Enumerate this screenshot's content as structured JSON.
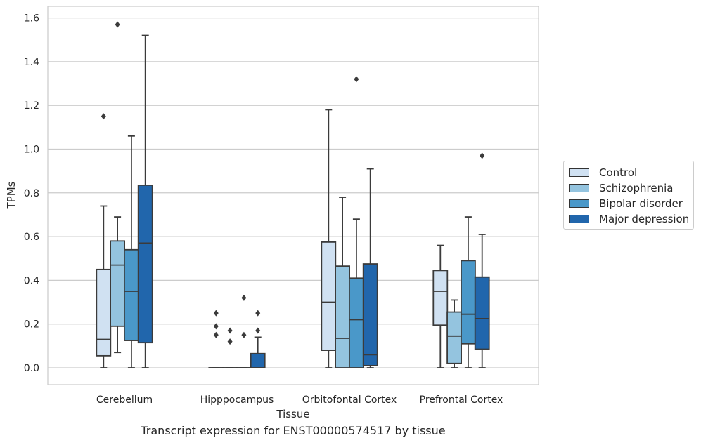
{
  "caption": "Transcript expression for ENST00000574517 by tissue",
  "chart_data": {
    "type": "box",
    "xlabel": "Tissue",
    "ylabel": "TPMs",
    "ylim": [
      -0.08,
      1.65
    ],
    "yticks": [
      "0.0",
      "0.2",
      "0.4",
      "0.6",
      "0.8",
      "1.0",
      "1.2",
      "1.4",
      "1.6"
    ],
    "grid": true,
    "legend_position": "right",
    "categories": [
      "Cerebellum",
      "Hipppocampus",
      "Orbitofontal Cortex",
      "Prefrontal Cortex"
    ],
    "series": [
      {
        "name": "Control",
        "color": "#d0e1f2",
        "boxes": [
          {
            "whislo": 0.0,
            "q1": 0.055,
            "med": 0.13,
            "q3": 0.45,
            "whishi": 0.74,
            "fliers": [
              1.15
            ]
          },
          {
            "whislo": 0.0,
            "q1": 0.0,
            "med": 0.0,
            "q3": 0.0,
            "whishi": 0.0,
            "fliers": [
              0.25,
              0.19,
              0.15
            ]
          },
          {
            "whislo": 0.0,
            "q1": 0.08,
            "med": 0.3,
            "q3": 0.575,
            "whishi": 1.18,
            "fliers": []
          },
          {
            "whislo": 0.0,
            "q1": 0.195,
            "med": 0.35,
            "q3": 0.445,
            "whishi": 0.56,
            "fliers": []
          }
        ]
      },
      {
        "name": "Schizophrenia",
        "color": "#94c4df",
        "boxes": [
          {
            "whislo": 0.07,
            "q1": 0.19,
            "med": 0.47,
            "q3": 0.58,
            "whishi": 0.69,
            "fliers": [
              1.57
            ]
          },
          {
            "whislo": 0.0,
            "q1": 0.0,
            "med": 0.0,
            "q3": 0.0,
            "whishi": 0.0,
            "fliers": [
              0.17,
              0.12
            ]
          },
          {
            "whislo": 0.0,
            "q1": 0.0,
            "med": 0.135,
            "q3": 0.465,
            "whishi": 0.78,
            "fliers": []
          },
          {
            "whislo": 0.0,
            "q1": 0.02,
            "med": 0.145,
            "q3": 0.255,
            "whishi": 0.31,
            "fliers": []
          }
        ]
      },
      {
        "name": "Bipolar disorder",
        "color": "#4a98c9",
        "boxes": [
          {
            "whislo": 0.0,
            "q1": 0.125,
            "med": 0.35,
            "q3": 0.54,
            "whishi": 1.06,
            "fliers": []
          },
          {
            "whislo": 0.0,
            "q1": 0.0,
            "med": 0.0,
            "q3": 0.0,
            "whishi": 0.0,
            "fliers": [
              0.32,
              0.15
            ]
          },
          {
            "whislo": 0.0,
            "q1": 0.0,
            "med": 0.22,
            "q3": 0.41,
            "whishi": 0.68,
            "fliers": [
              1.32
            ]
          },
          {
            "whislo": 0.0,
            "q1": 0.11,
            "med": 0.245,
            "q3": 0.49,
            "whishi": 0.69,
            "fliers": []
          }
        ]
      },
      {
        "name": "Major depression",
        "color": "#2166ac",
        "boxes": [
          {
            "whislo": 0.0,
            "q1": 0.115,
            "med": 0.57,
            "q3": 0.835,
            "whishi": 1.52,
            "fliers": []
          },
          {
            "whislo": 0.0,
            "q1": 0.0,
            "med": 0.0,
            "q3": 0.065,
            "whishi": 0.14,
            "fliers": [
              0.25,
              0.17
            ]
          },
          {
            "whislo": 0.0,
            "q1": 0.01,
            "med": 0.06,
            "q3": 0.475,
            "whishi": 0.91,
            "fliers": []
          },
          {
            "whislo": 0.0,
            "q1": 0.085,
            "med": 0.225,
            "q3": 0.415,
            "whishi": 0.61,
            "fliers": [
              0.97
            ]
          }
        ]
      }
    ]
  }
}
